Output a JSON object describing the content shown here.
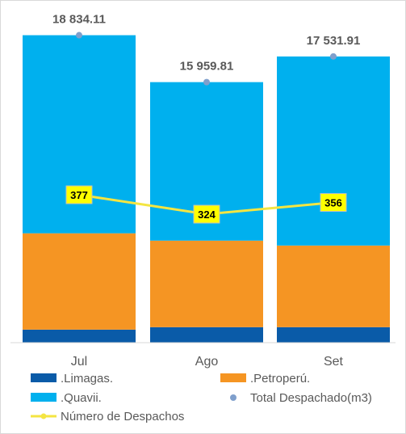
{
  "chart_data": {
    "type": "bar",
    "stacked": true,
    "categories": [
      "Jul",
      "Ago",
      "Set"
    ],
    "series": [
      {
        "name": ".Limagas.",
        "values": [
          800,
          950,
          950
        ],
        "color": "#0a5ba8"
      },
      {
        "name": ".Petroperú.",
        "values": [
          5900,
          5300,
          5000
        ],
        "color": "#f59523"
      },
      {
        "name": ".Quavii.",
        "values": [
          12134.11,
          9709.81,
          11581.91
        ],
        "color": "#00b0ee"
      }
    ],
    "totals": {
      "name": "Total Despachado(m3)",
      "values": [
        18834.11,
        15959.81,
        17531.91
      ],
      "labels": [
        "18 834.11",
        "15 959.81",
        "17 531.91"
      ],
      "color": "#7f9fcc"
    },
    "line": {
      "name": "Número de Despachos",
      "values": [
        377,
        324,
        356
      ],
      "color": "#f4e542",
      "label_bg": "#ffff00"
    },
    "title": "",
    "xlabel": "",
    "ylabel": "",
    "ylim": [
      0,
      20000
    ],
    "grid": false,
    "legend_position": "bottom"
  }
}
